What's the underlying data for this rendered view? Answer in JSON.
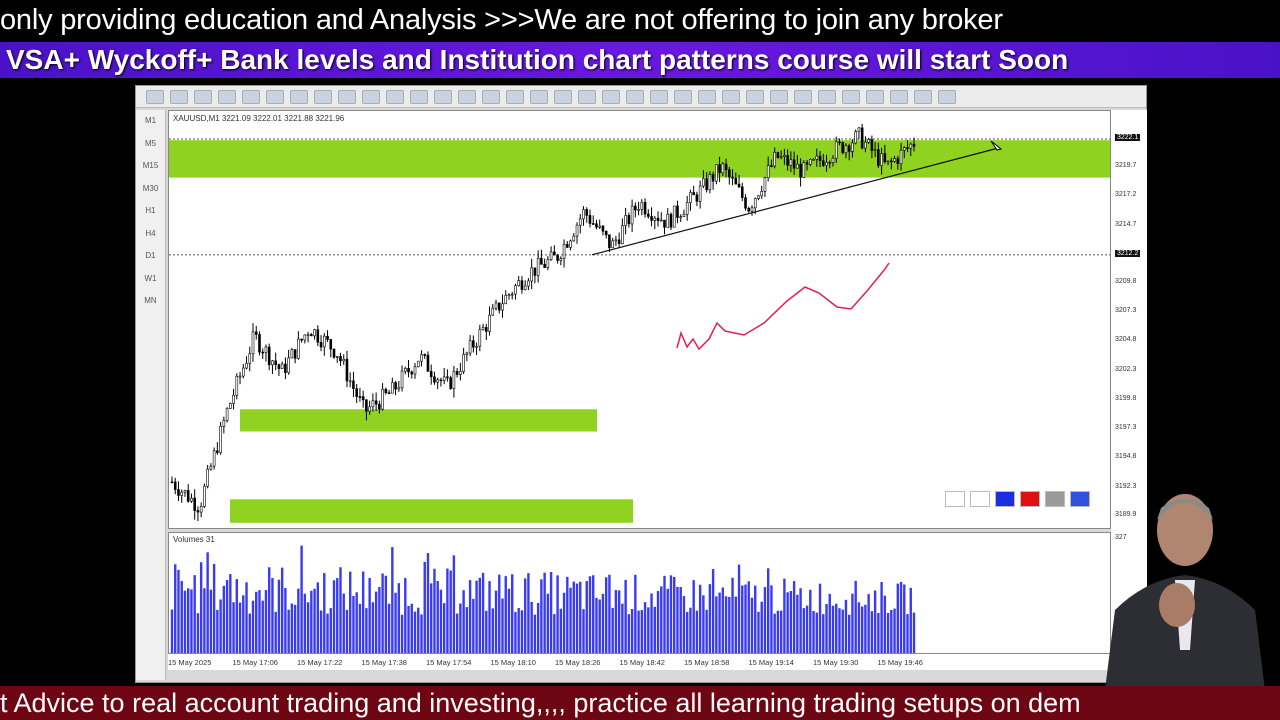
{
  "banners": {
    "top": "only providing education and Analysis >>>We are not offering to join any broker",
    "middle": "VSA+ Wyckoff+ Bank levels and Institution chart patterns course will start Soon",
    "bottom": "t Advice to real account trading and investing,,,, practice all learning trading setups on dem"
  },
  "chart": {
    "symbol_line": "XAUUSD,M1  3221.09 3222.01 3221.88 3221.96",
    "timeframes": [
      "M1",
      "M5",
      "M15",
      "M30",
      "H1",
      "H4",
      "D1",
      "W1",
      "MN"
    ],
    "price_axis": [
      "3222.1",
      "3219.7",
      "3217.2",
      "3214.7",
      "3212.2",
      "3209.8",
      "3207.3",
      "3204.8",
      "3202.3",
      "3199.8",
      "3197.3",
      "3194.8",
      "3192.3",
      "3189.9"
    ],
    "highlighted_prices": [
      "3222.1",
      "3212.2"
    ],
    "volume_label": "Volumes 31",
    "volume_axis_max": "327",
    "time_labels": [
      "15 May 2025",
      "15 May 17:06",
      "15 May 17:22",
      "15 May 17:38",
      "15 May 17:54",
      "15 May 18:10",
      "15 May 18:26",
      "15 May 18:42",
      "15 May 18:58",
      "15 May 19:14",
      "15 May 19:30",
      "15 May 19:46"
    ],
    "approx_close_path": [
      3192.8,
      3190.7,
      3198.8,
      3205.2,
      3202.2,
      3206.0,
      3203.9,
      3198.8,
      3200.5,
      3203.5,
      3200.9,
      3204.7,
      3208.2,
      3210.7,
      3212.0,
      3215.9,
      3212.9,
      3216.7,
      3215.0,
      3217.1,
      3219.7,
      3216.3,
      3220.6,
      3219.3,
      3221.0,
      3222.3,
      3219.7,
      3221.8
    ],
    "zones": [
      {
        "from": 3218.8,
        "to": 3222.0
      },
      {
        "from": 3197.1,
        "to": 3199.0
      },
      {
        "from": 3189.3,
        "to": 3191.3
      }
    ],
    "colors": {
      "zone": "#8fd21f",
      "volume": "#3a3af0",
      "drawing": "#e0205a",
      "candle": "#000000"
    },
    "color_swatches": [
      "#ffffff",
      "#ffffff",
      "#1a2ee0",
      "#e01010",
      "#9a9a9a",
      "#3050e0"
    ]
  }
}
